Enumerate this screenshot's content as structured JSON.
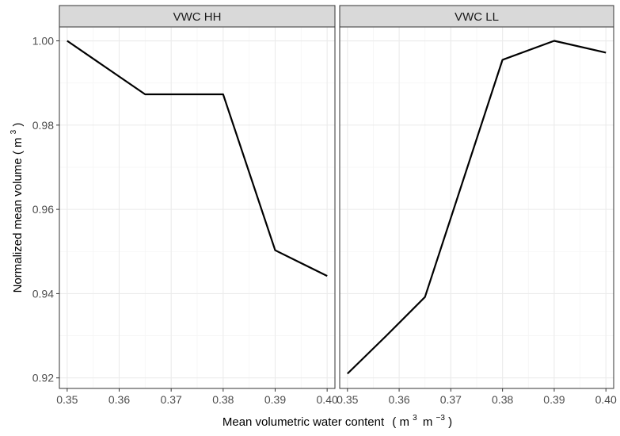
{
  "chart_data": {
    "type": "line",
    "xlabel_parts": {
      "text": "Mean volumetric water content",
      "open": "(",
      "m1": "m",
      "e1": "3",
      "m2": "m",
      "e2": "−3",
      "close": ")"
    },
    "ylabel_parts": {
      "text": "Normalized mean volume",
      "open": "(",
      "m": "m",
      "e": "3",
      "close": ")"
    },
    "xlim": [
      0.3485,
      0.4015
    ],
    "ylim": [
      0.9175,
      1.0033
    ],
    "x_ticks": [
      0.35,
      0.36,
      0.37,
      0.38,
      0.39,
      0.4
    ],
    "x_tick_labels": [
      "0.35",
      "0.36",
      "0.37",
      "0.38",
      "0.39",
      "0.40"
    ],
    "y_ticks": [
      0.92,
      0.94,
      0.96,
      0.98,
      1.0
    ],
    "y_tick_labels": [
      "0.92",
      "0.94",
      "0.96",
      "0.98",
      "1.00"
    ],
    "grid": true,
    "colors": {
      "line": "#000000",
      "strip_fill": "#d9d9d9",
      "grid_major": "#ebebeb",
      "grid_minor": "#f5f5f5",
      "border": "#333333"
    },
    "panels": [
      {
        "strip": "VWC HH",
        "x": [
          0.35,
          0.365,
          0.38,
          0.39,
          0.4
        ],
        "y": [
          1.0,
          0.9873,
          0.9873,
          0.9503,
          0.9442
        ]
      },
      {
        "strip": "VWC LL",
        "x": [
          0.35,
          0.3575,
          0.365,
          0.38,
          0.39,
          0.4
        ],
        "y": [
          0.921,
          0.93,
          0.9392,
          0.9955,
          1.0,
          0.9972
        ]
      }
    ]
  }
}
